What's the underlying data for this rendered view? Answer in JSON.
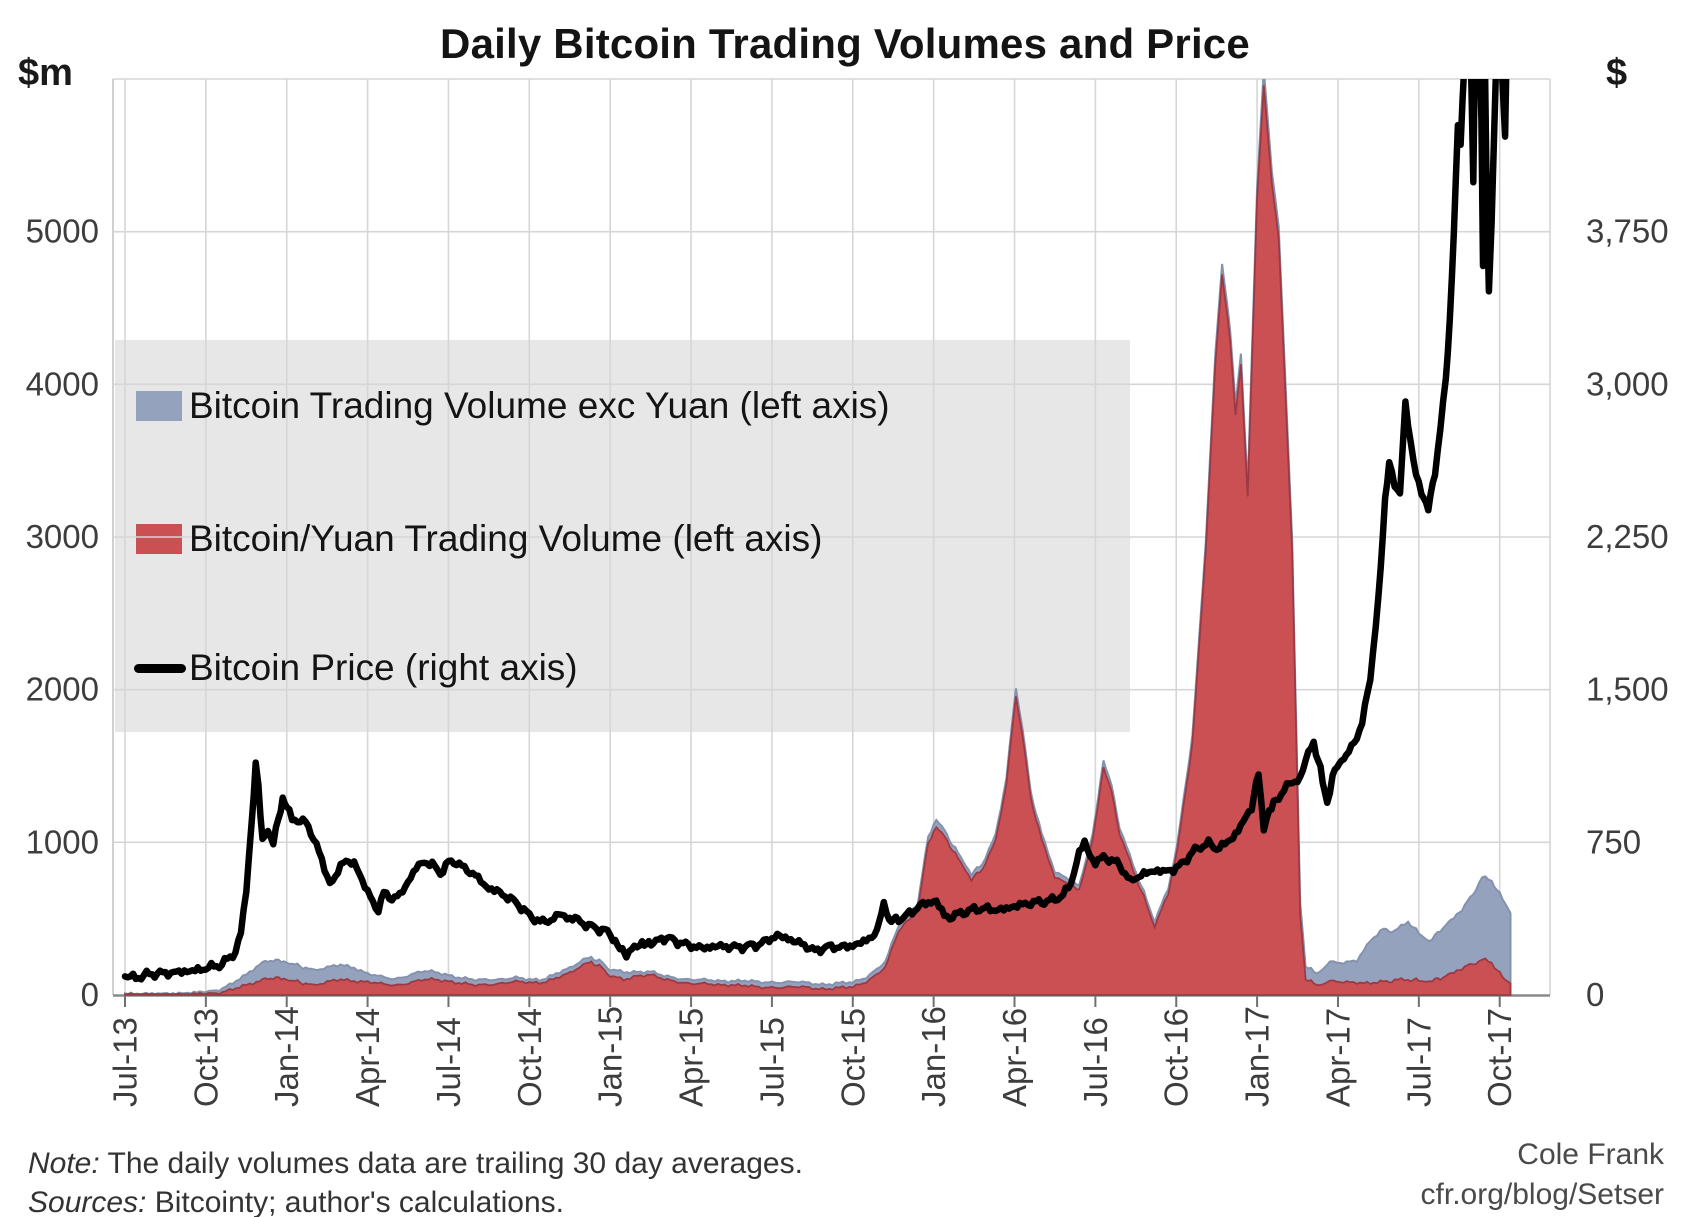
{
  "title": "Daily Bitcoin Trading Volumes and Price",
  "axis_units": {
    "left": "$m",
    "right": "$"
  },
  "legend": {
    "items": [
      {
        "label": "Bitcoin Trading Volume exc Yuan (left axis)",
        "color": "#95a2bd",
        "type": "area"
      },
      {
        "label": "Bitcoin/Yuan Trading Volume (left axis)",
        "color": "#cb5053",
        "type": "area"
      },
      {
        "label": "Bitcoin Price (right axis)",
        "color": "#000000",
        "type": "line"
      }
    ],
    "background": "#e7e7e7"
  },
  "notes": {
    "note_label": "Note:",
    "note_text": " The daily volumes  data are trailing 30 day averages.",
    "sources_label": "Sources:",
    "sources_text": " Bitcointy; author's calculations."
  },
  "credit": {
    "line1": "Cole Frank",
    "line2": "cfr.org/blog/Setser"
  },
  "colors": {
    "exc_yuan_fill": "#95a2bd",
    "exc_yuan_stroke": "#8592ae",
    "yuan_fill": "#cb5053",
    "yuan_stroke": "#9c3a44",
    "price": "#000000",
    "grid": "#d6d6d6",
    "axis": "#8a8a8a",
    "tick": "#6f6f6f",
    "label": "#3d3d3d",
    "legend_bg": "#e7e7e7"
  },
  "chart_data": {
    "type": "combo-area-line",
    "x_axis": {
      "unit": "months since Jul-2013, quarterly ticks",
      "tick_labels": [
        "Jul-13",
        "Oct-13",
        "Jan-14",
        "Apr-14",
        "Jul-14",
        "Oct-14",
        "Jan-15",
        "Apr-15",
        "Jul-15",
        "Oct-15",
        "Jan-16",
        "Apr-16",
        "Jul-16",
        "Oct-16",
        "Jan-17",
        "Apr-17",
        "Jul-17",
        "Oct-17"
      ],
      "data_end": "mid-Oct-2017"
    },
    "left_axis": {
      "unit": "$m",
      "tick_labels": [
        "0",
        "1000",
        "2000",
        "3000",
        "4000",
        "5000"
      ],
      "tick_values": [
        0,
        1000,
        2000,
        3000,
        4000,
        5000
      ],
      "max": 6000
    },
    "right_axis": {
      "unit": "$",
      "tick_labels": [
        "0",
        "750",
        "1,500",
        "2,250",
        "3,000",
        "3,750"
      ],
      "tick_values": [
        0,
        750,
        1500,
        2250,
        3000,
        3750
      ],
      "max": 4500
    },
    "grid": true,
    "legend_position": "upper-left-inside",
    "volumes_note": "points are [t_months_since_Jul2013, yuan_volume_$m, exc_yuan_volume_$m]; areas stacked (red yuan below, blue exc-yuan cap on top)",
    "volumes": [
      [
        0,
        3,
        5
      ],
      [
        1,
        3,
        6
      ],
      [
        2,
        4,
        6
      ],
      [
        3,
        10,
        12
      ],
      [
        3.5,
        18,
        20
      ],
      [
        4,
        35,
        40
      ],
      [
        4.5,
        62,
        68
      ],
      [
        5,
        95,
        110
      ],
      [
        5.4,
        112,
        116
      ],
      [
        5.8,
        108,
        114
      ],
      [
        6.2,
        95,
        110
      ],
      [
        6.6,
        78,
        104
      ],
      [
        7,
        66,
        99
      ],
      [
        7.5,
        82,
        95
      ],
      [
        8,
        100,
        96
      ],
      [
        8.5,
        95,
        87
      ],
      [
        9,
        86,
        54
      ],
      [
        9.5,
        70,
        46
      ],
      [
        10,
        64,
        41
      ],
      [
        10.5,
        80,
        50
      ],
      [
        11,
        96,
        56
      ],
      [
        11.5,
        100,
        50
      ],
      [
        12,
        94,
        40
      ],
      [
        12.5,
        76,
        34
      ],
      [
        13,
        60,
        35
      ],
      [
        13.5,
        70,
        34
      ],
      [
        14,
        80,
        26
      ],
      [
        14.5,
        85,
        25
      ],
      [
        15,
        80,
        20
      ],
      [
        15.5,
        86,
        20
      ],
      [
        16,
        110,
        30
      ],
      [
        16.5,
        140,
        32
      ],
      [
        17,
        200,
        34
      ],
      [
        17.3,
        216,
        30
      ],
      [
        17.7,
        178,
        35
      ],
      [
        18,
        122,
        40
      ],
      [
        18.5,
        100,
        50
      ],
      [
        19,
        130,
        25
      ],
      [
        19.5,
        131,
        21
      ],
      [
        20,
        100,
        22
      ],
      [
        20.5,
        90,
        22
      ],
      [
        21,
        76,
        26
      ],
      [
        21.5,
        70,
        26
      ],
      [
        22,
        66,
        26
      ],
      [
        22.5,
        70,
        26
      ],
      [
        23,
        60,
        32
      ],
      [
        23.5,
        48,
        34
      ],
      [
        24,
        52,
        34
      ],
      [
        24.5,
        52,
        33
      ],
      [
        25,
        50,
        32
      ],
      [
        25.5,
        46,
        30
      ],
      [
        26,
        42,
        30
      ],
      [
        26.5,
        45,
        31
      ],
      [
        27,
        50,
        30
      ],
      [
        27.5,
        90,
        30
      ],
      [
        28,
        150,
        36
      ],
      [
        28.2,
        180,
        35
      ],
      [
        28.55,
        355,
        37
      ],
      [
        28.7,
        420,
        35
      ],
      [
        29,
        480,
        35
      ],
      [
        29.4,
        550,
        40
      ],
      [
        29.8,
        1000,
        42
      ],
      [
        30.1,
        1100,
        48
      ],
      [
        30.4,
        1040,
        40
      ],
      [
        30.7,
        950,
        35
      ],
      [
        31,
        870,
        35
      ],
      [
        31.4,
        755,
        35
      ],
      [
        31.8,
        825,
        35
      ],
      [
        32.3,
        1010,
        38
      ],
      [
        32.7,
        1380,
        40
      ],
      [
        33.05,
        1960,
        52
      ],
      [
        33.3,
        1700,
        45
      ],
      [
        33.6,
        1290,
        40
      ],
      [
        34,
        1020,
        40
      ],
      [
        34.5,
        775,
        35
      ],
      [
        35,
        730,
        32
      ],
      [
        35.4,
        685,
        30
      ],
      [
        35.9,
        1010,
        38
      ],
      [
        36.3,
        1495,
        45
      ],
      [
        36.6,
        1330,
        40
      ],
      [
        36.9,
        1060,
        40
      ],
      [
        37.4,
        815,
        35
      ],
      [
        37.8,
        640,
        32
      ],
      [
        38.2,
        445,
        33
      ],
      [
        38.7,
        665,
        35
      ],
      [
        39.05,
        960,
        40
      ],
      [
        39.6,
        1650,
        50
      ],
      [
        40.1,
        2920,
        60
      ],
      [
        40.45,
        4130,
        70
      ],
      [
        40.7,
        4730,
        70
      ],
      [
        41,
        4280,
        70
      ],
      [
        41.2,
        3800,
        70
      ],
      [
        41.4,
        4130,
        70
      ],
      [
        41.65,
        3260,
        70
      ],
      [
        42,
        5220,
        80
      ],
      [
        42.25,
        5950,
        110
      ],
      [
        42.55,
        5320,
        80
      ],
      [
        42.8,
        4950,
        80
      ],
      [
        43.05,
        3940,
        80
      ],
      [
        43.3,
        2900,
        80
      ],
      [
        43.6,
        520,
        80
      ],
      [
        43.8,
        110,
        85
      ],
      [
        44.2,
        65,
        75
      ],
      [
        44.7,
        90,
        125
      ],
      [
        45.2,
        80,
        125
      ],
      [
        45.7,
        85,
        145
      ],
      [
        46.2,
        80,
        280
      ],
      [
        46.7,
        85,
        345
      ],
      [
        47.1,
        95,
        320
      ],
      [
        47.6,
        100,
        380
      ],
      [
        48,
        95,
        310
      ],
      [
        48.4,
        88,
        262
      ],
      [
        48.8,
        110,
        315
      ],
      [
        49.2,
        140,
        350
      ],
      [
        49.6,
        175,
        385
      ],
      [
        50,
        205,
        455
      ],
      [
        50.35,
        230,
        540
      ],
      [
        50.7,
        212,
        536
      ],
      [
        51,
        140,
        520
      ],
      [
        51.2,
        100,
        500
      ],
      [
        51.4,
        80,
        460
      ]
    ],
    "price_note": "points are [t_months_since_Jul2013, price_usd]; clipped at right-axis max 4500",
    "price": [
      [
        0,
        95
      ],
      [
        0.4,
        84
      ],
      [
        0.8,
        100
      ],
      [
        1.2,
        106
      ],
      [
        1.6,
        108
      ],
      [
        2,
        113
      ],
      [
        2.4,
        118
      ],
      [
        2.8,
        124
      ],
      [
        3,
        133
      ],
      [
        3.3,
        140
      ],
      [
        3.6,
        152
      ],
      [
        3.9,
        185
      ],
      [
        4.1,
        215
      ],
      [
        4.3,
        300
      ],
      [
        4.5,
        520
      ],
      [
        4.7,
        850
      ],
      [
        4.85,
        1130
      ],
      [
        4.95,
        1020
      ],
      [
        5.1,
        760
      ],
      [
        5.3,
        810
      ],
      [
        5.5,
        745
      ],
      [
        5.7,
        870
      ],
      [
        5.85,
        965
      ],
      [
        6,
        930
      ],
      [
        6.2,
        855
      ],
      [
        6.4,
        865
      ],
      [
        6.7,
        845
      ],
      [
        6.9,
        800
      ],
      [
        7.1,
        740
      ],
      [
        7.4,
        620
      ],
      [
        7.6,
        550
      ],
      [
        7.8,
        575
      ],
      [
        8,
        635
      ],
      [
        8.2,
        665
      ],
      [
        8.5,
        640
      ],
      [
        8.8,
        575
      ],
      [
        9,
        500
      ],
      [
        9.2,
        455
      ],
      [
        9.4,
        420
      ],
      [
        9.6,
        500
      ],
      [
        9.9,
        475
      ],
      [
        10.2,
        490
      ],
      [
        10.5,
        555
      ],
      [
        10.8,
        625
      ],
      [
        11.1,
        655
      ],
      [
        11.4,
        640
      ],
      [
        11.7,
        600
      ],
      [
        12,
        650
      ],
      [
        12.3,
        655
      ],
      [
        12.6,
        620
      ],
      [
        13,
        590
      ],
      [
        13.4,
        530
      ],
      [
        13.8,
        510
      ],
      [
        14.2,
        480
      ],
      [
        14.6,
        445
      ],
      [
        15,
        390
      ],
      [
        15.4,
        360
      ],
      [
        15.8,
        365
      ],
      [
        16.1,
        400
      ],
      [
        16.4,
        378
      ],
      [
        16.7,
        376
      ],
      [
        17,
        352
      ],
      [
        17.4,
        330
      ],
      [
        17.8,
        318
      ],
      [
        18.1,
        282
      ],
      [
        18.45,
        215
      ],
      [
        18.6,
        192
      ],
      [
        18.8,
        232
      ],
      [
        19.1,
        242
      ],
      [
        19.35,
        262
      ],
      [
        19.6,
        248
      ],
      [
        19.9,
        282
      ],
      [
        20.3,
        272
      ],
      [
        20.7,
        252
      ],
      [
        21.1,
        238
      ],
      [
        21.5,
        230
      ],
      [
        21.9,
        240
      ],
      [
        22.3,
        238
      ],
      [
        22.7,
        235
      ],
      [
        23.1,
        240
      ],
      [
        23.5,
        248
      ],
      [
        23.9,
        272
      ],
      [
        24.2,
        293
      ],
      [
        24.5,
        280
      ],
      [
        24.9,
        262
      ],
      [
        25.3,
        240
      ],
      [
        25.6,
        214
      ],
      [
        25.9,
        232
      ],
      [
        26.3,
        237
      ],
      [
        26.7,
        236
      ],
      [
        27.1,
        246
      ],
      [
        27.5,
        268
      ],
      [
        27.9,
        310
      ],
      [
        28.15,
        458
      ],
      [
        28.35,
        358
      ],
      [
        28.6,
        372
      ],
      [
        28.9,
        382
      ],
      [
        29.2,
        408
      ],
      [
        29.5,
        442
      ],
      [
        29.8,
        452
      ],
      [
        30.1,
        462
      ],
      [
        30.4,
        390
      ],
      [
        30.6,
        380
      ],
      [
        30.9,
        398
      ],
      [
        31.2,
        410
      ],
      [
        31.5,
        420
      ],
      [
        31.8,
        426
      ],
      [
        32.1,
        420
      ],
      [
        32.5,
        418
      ],
      [
        32.9,
        432
      ],
      [
        33.2,
        442
      ],
      [
        33.6,
        452
      ],
      [
        34,
        458
      ],
      [
        34.4,
        465
      ],
      [
        34.8,
        490
      ],
      [
        35.1,
        550
      ],
      [
        35.4,
        700
      ],
      [
        35.6,
        752
      ],
      [
        35.8,
        682
      ],
      [
        36,
        650
      ],
      [
        36.3,
        678
      ],
      [
        36.6,
        662
      ],
      [
        36.9,
        640
      ],
      [
        37.1,
        600
      ],
      [
        37.3,
        552
      ],
      [
        37.5,
        580
      ],
      [
        37.8,
        592
      ],
      [
        38.1,
        610
      ],
      [
        38.5,
        608
      ],
      [
        38.9,
        615
      ],
      [
        39.2,
        642
      ],
      [
        39.6,
        700
      ],
      [
        39.9,
        730
      ],
      [
        40.2,
        745
      ],
      [
        40.5,
        718
      ],
      [
        40.8,
        742
      ],
      [
        41.1,
        772
      ],
      [
        41.5,
        852
      ],
      [
        41.8,
        925
      ],
      [
        42.05,
        1088
      ],
      [
        42.25,
        818
      ],
      [
        42.45,
        905
      ],
      [
        42.7,
        952
      ],
      [
        43,
        1012
      ],
      [
        43.3,
        1045
      ],
      [
        43.6,
        1062
      ],
      [
        43.9,
        1195
      ],
      [
        44.1,
        1238
      ],
      [
        44.35,
        1105
      ],
      [
        44.6,
        938
      ],
      [
        44.8,
        1082
      ],
      [
        45.05,
        1132
      ],
      [
        45.3,
        1185
      ],
      [
        45.6,
        1228
      ],
      [
        45.9,
        1345
      ],
      [
        46.2,
        1550
      ],
      [
        46.5,
        1950
      ],
      [
        46.75,
        2420
      ],
      [
        46.9,
        2620
      ],
      [
        47.1,
        2510
      ],
      [
        47.3,
        2460
      ],
      [
        47.5,
        2905
      ],
      [
        47.7,
        2720
      ],
      [
        47.9,
        2542
      ],
      [
        48.1,
        2472
      ],
      [
        48.35,
        2392
      ],
      [
        48.6,
        2560
      ],
      [
        48.8,
        2795
      ],
      [
        49,
        3020
      ],
      [
        49.15,
        3300
      ],
      [
        49.3,
        3760
      ],
      [
        49.45,
        4280
      ],
      [
        49.55,
        4180
      ],
      [
        49.7,
        4600
      ],
      [
        49.85,
        4950
      ],
      [
        49.95,
        4480
      ],
      [
        50.02,
        4000
      ],
      [
        50.1,
        4820
      ],
      [
        50.25,
        4700
      ],
      [
        50.32,
        4300
      ],
      [
        50.38,
        3570
      ],
      [
        50.45,
        4600
      ],
      [
        50.52,
        3900
      ],
      [
        50.6,
        3465
      ],
      [
        50.7,
        3800
      ],
      [
        50.8,
        4250
      ],
      [
        50.9,
        4700
      ],
      [
        51,
        4850
      ],
      [
        51.1,
        4500
      ],
      [
        51.2,
        4230
      ],
      [
        51.3,
        4950
      ],
      [
        51.45,
        5600
      ]
    ]
  }
}
